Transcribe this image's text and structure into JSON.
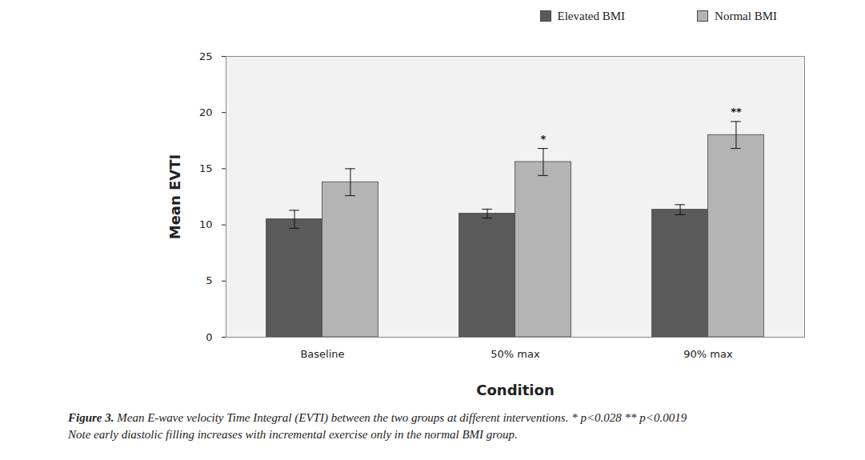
{
  "chart_data": {
    "type": "bar",
    "caption_label": "Figure 3.",
    "caption": "Mean E-wave velocity Time Integral (EVTI) between the two groups at different interventions. * p<0.028 ** p<0.0019",
    "note": "Note early diastolic filling increases with incremental exercise only in the normal BMI group.",
    "x_label": "Condition",
    "y_label": "Mean EVTI",
    "categories": [
      "Baseline",
      "50% max",
      "90% max"
    ],
    "series": [
      {
        "name": "Elevated BMI",
        "color": "#5a5a5a",
        "values": [
          10.5,
          11.0,
          11.35
        ],
        "errors": [
          0.8,
          0.4,
          0.45
        ]
      },
      {
        "name": "Normal BMI",
        "color": "#b4b4b4",
        "values": [
          13.8,
          15.6,
          18.0
        ],
        "errors": [
          1.2,
          1.2,
          1.2
        ]
      }
    ],
    "annotations": [
      {
        "category": "50% max",
        "series": "Normal BMI",
        "text": "*"
      },
      {
        "category": "90% max",
        "series": "Normal BMI",
        "text": "**"
      }
    ],
    "ylim": [
      0,
      25
    ],
    "yticks": [
      0,
      5,
      10,
      15,
      20,
      25
    ],
    "grid": false,
    "legend": "top-right"
  }
}
